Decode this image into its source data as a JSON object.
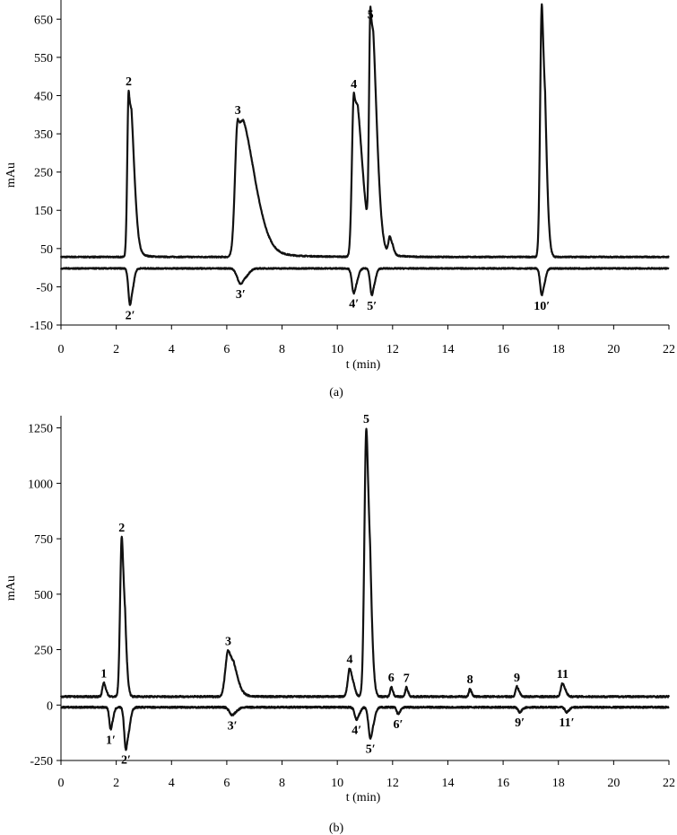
{
  "chart_data": [
    {
      "panel": "(a)",
      "type": "line",
      "xlabel": "t (min)",
      "ylabel": "mAu",
      "xlim": [
        0,
        22
      ],
      "ylim": [
        -150,
        700
      ],
      "x_ticks": [
        0,
        2,
        4,
        6,
        8,
        10,
        12,
        14,
        16,
        18,
        20,
        22
      ],
      "y_ticks": [
        -150,
        -50,
        50,
        150,
        250,
        350,
        450,
        550,
        650
      ],
      "series": [
        {
          "baseline": 28,
          "peaks": [
            {
              "label": "2",
              "t": 2.45,
              "height": 435,
              "width": 0.05,
              "tail": 0.12
            },
            {
              "label": "3",
              "t": 6.4,
              "height": 360,
              "width": 0.1,
              "tail": 0.45
            },
            {
              "label": "4",
              "t": 10.6,
              "height": 428,
              "width": 0.07,
              "tail": 0.2
            },
            {
              "label": "5",
              "t": 11.2,
              "height": 610,
              "width": 0.05,
              "tail": 0.15
            },
            {
              "label": "",
              "t": 11.9,
              "height": 45,
              "width": 0.05,
              "tail": 0.05
            },
            {
              "label": "10",
              "t": 17.4,
              "height": 660,
              "width": 0.06,
              "tail": 0.07
            }
          ]
        },
        {
          "baseline": -2,
          "peaks": [
            {
              "label": "2′",
              "t": 2.5,
              "height": -95,
              "width": 0.06,
              "tail": 0.04
            },
            {
              "label": "3′",
              "t": 6.5,
              "height": -40,
              "width": 0.12,
              "tail": 0.08
            },
            {
              "label": "4′",
              "t": 10.6,
              "height": -65,
              "width": 0.07,
              "tail": 0.04
            },
            {
              "label": "5′",
              "t": 11.25,
              "height": -70,
              "width": 0.06,
              "tail": 0.04
            },
            {
              "label": "10′",
              "t": 17.4,
              "height": -70,
              "width": 0.06,
              "tail": 0.04
            }
          ]
        }
      ]
    },
    {
      "panel": "(b)",
      "type": "line",
      "xlabel": "t (min)",
      "ylabel": "mAu",
      "xlim": [
        0,
        22
      ],
      "ylim": [
        -250,
        1300
      ],
      "x_ticks": [
        0,
        2,
        4,
        6,
        8,
        10,
        12,
        14,
        16,
        18,
        20,
        22
      ],
      "y_ticks": [
        -250,
        0,
        250,
        500,
        750,
        1000,
        1250
      ],
      "series": [
        {
          "baseline": 38,
          "peaks": [
            {
              "label": "1",
              "t": 1.55,
              "height": 62,
              "width": 0.05,
              "tail": 0.03
            },
            {
              "label": "2",
              "t": 2.2,
              "height": 720,
              "width": 0.06,
              "tail": 0.05
            },
            {
              "label": "3",
              "t": 6.05,
              "height": 208,
              "width": 0.1,
              "tail": 0.15
            },
            {
              "label": "4",
              "t": 10.45,
              "height": 128,
              "width": 0.07,
              "tail": 0.05
            },
            {
              "label": "5",
              "t": 11.05,
              "height": 1210,
              "width": 0.07,
              "tail": 0.06
            },
            {
              "label": "6",
              "t": 11.95,
              "height": 45,
              "width": 0.04,
              "tail": 0.02
            },
            {
              "label": "7",
              "t": 12.5,
              "height": 42,
              "width": 0.04,
              "tail": 0.02
            },
            {
              "label": "8",
              "t": 14.8,
              "height": 35,
              "width": 0.04,
              "tail": 0.02
            },
            {
              "label": "9",
              "t": 16.5,
              "height": 45,
              "width": 0.05,
              "tail": 0.03
            },
            {
              "label": "11",
              "t": 18.15,
              "height": 60,
              "width": 0.06,
              "tail": 0.04
            }
          ]
        },
        {
          "baseline": -10,
          "peaks": [
            {
              "label": "1′",
              "t": 1.8,
              "height": -100,
              "width": 0.05,
              "tail": 0.03
            },
            {
              "label": "2′",
              "t": 2.35,
              "height": -190,
              "width": 0.06,
              "tail": 0.05
            },
            {
              "label": "3′",
              "t": 6.2,
              "height": -35,
              "width": 0.1,
              "tail": 0.05
            },
            {
              "label": "4′",
              "t": 10.7,
              "height": -55,
              "width": 0.07,
              "tail": 0.03
            },
            {
              "label": "5′",
              "t": 11.2,
              "height": -140,
              "width": 0.07,
              "tail": 0.04
            },
            {
              "label": "6′",
              "t": 12.2,
              "height": -30,
              "width": 0.05,
              "tail": 0.03
            },
            {
              "label": "9′",
              "t": 16.6,
              "height": -22,
              "width": 0.06,
              "tail": 0.03
            },
            {
              "label": "11′",
              "t": 18.3,
              "height": -22,
              "width": 0.06,
              "tail": 0.03
            }
          ]
        }
      ]
    }
  ]
}
